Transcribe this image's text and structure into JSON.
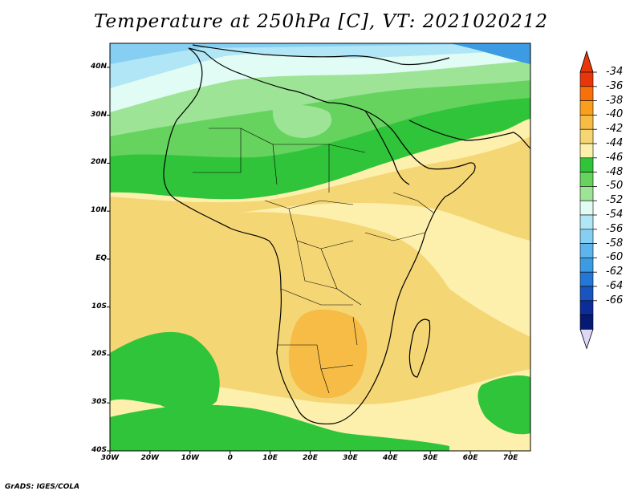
{
  "title": "Temperature at 250hPa [C], VT: 2021020212",
  "credit": "GrADS: IGES/COLA",
  "lat_labels": [
    "40N",
    "30N",
    "20N",
    "10N",
    "EQ",
    "10S",
    "20S",
    "30S",
    "40S"
  ],
  "lon_labels": [
    "30W",
    "20W",
    "10W",
    "0",
    "10E",
    "20E",
    "30E",
    "40E",
    "50E",
    "60E",
    "70E"
  ],
  "colorbar": {
    "labels": [
      "-34",
      "-36",
      "-38",
      "-40",
      "-42",
      "-44",
      "-46",
      "-48",
      "-50",
      "-52",
      "-54",
      "-56",
      "-58",
      "-60",
      "-62",
      "-64",
      "-66"
    ],
    "colors": [
      "#e8360a",
      "#f7700a",
      "#f99f1d",
      "#f7bc46",
      "#f5d675",
      "#fdf0ad",
      "#30c43a",
      "#66d35f",
      "#9de496",
      "#e0fcf4",
      "#b1e6f6",
      "#86cff2",
      "#5eb5ec",
      "#3c9be2",
      "#2577d7",
      "#1a55bf",
      "#0d2c98",
      "#061a72"
    ],
    "top_arrow_color": "#e8360a",
    "bottom_arrow_color": "#dcd8f6"
  },
  "map": {
    "lon_range": [
      -30,
      75
    ],
    "lat_range": [
      -40,
      45
    ],
    "field_colors": {
      "very_warm": "#f7bc46",
      "warm": "#f5d675",
      "mild": "#fdf0ad",
      "green_dark": "#30c43a",
      "green_mid": "#66d35f",
      "green_light": "#9de496",
      "ice": "#e0fcf4",
      "blue_light": "#b1e6f6",
      "blue_mid": "#86cff2",
      "blue_deep": "#5eb5ec",
      "blue_dark": "#3c9be2"
    }
  }
}
